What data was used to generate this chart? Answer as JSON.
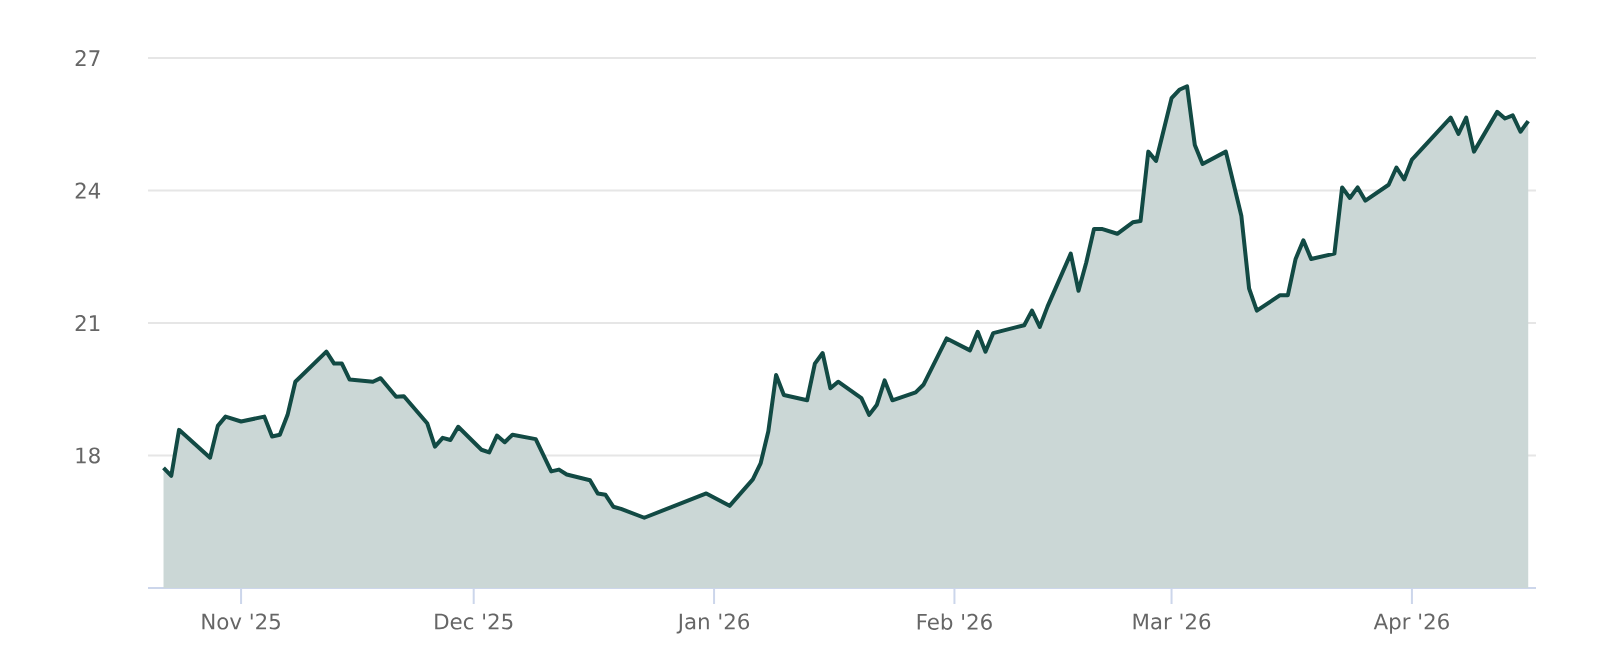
{
  "chart_data": {
    "type": "area",
    "x": [
      "2025-10-22",
      "2025-10-23",
      "2025-10-24",
      "2025-10-28",
      "2025-10-29",
      "2025-10-30",
      "2025-11-01",
      "2025-11-04",
      "2025-11-05",
      "2025-11-06",
      "2025-11-07",
      "2025-11-08",
      "2025-11-12",
      "2025-11-13",
      "2025-11-14",
      "2025-11-15",
      "2025-11-18",
      "2025-11-19",
      "2025-11-21",
      "2025-11-22",
      "2025-11-25",
      "2025-11-26",
      "2025-11-27",
      "2025-11-28",
      "2025-11-29",
      "2025-12-02",
      "2025-12-03",
      "2025-12-04",
      "2025-12-05",
      "2025-12-06",
      "2025-12-09",
      "2025-12-11",
      "2025-12-12",
      "2025-12-13",
      "2025-12-16",
      "2025-12-17",
      "2025-12-18",
      "2025-12-19",
      "2025-12-20",
      "2025-12-23",
      "2025-12-31",
      "2026-01-03",
      "2026-01-06",
      "2026-01-07",
      "2026-01-08",
      "2026-01-09",
      "2026-01-10",
      "2026-01-13",
      "2026-01-14",
      "2026-01-15",
      "2026-01-16",
      "2026-01-17",
      "2026-01-20",
      "2026-01-21",
      "2026-01-22",
      "2026-01-23",
      "2026-01-24",
      "2026-01-27",
      "2026-01-28",
      "2026-01-31",
      "2026-02-03",
      "2026-02-04",
      "2026-02-05",
      "2026-02-06",
      "2026-02-10",
      "2026-02-11",
      "2026-02-12",
      "2026-02-13",
      "2026-02-16",
      "2026-02-17",
      "2026-02-18",
      "2026-02-19",
      "2026-02-20",
      "2026-02-22",
      "2026-02-24",
      "2026-02-25",
      "2026-02-26",
      "2026-02-27",
      "2026-03-01",
      "2026-03-02",
      "2026-03-03",
      "2026-03-04",
      "2026-03-05",
      "2026-03-08",
      "2026-03-10",
      "2026-03-11",
      "2026-03-12",
      "2026-03-15",
      "2026-03-16",
      "2026-03-17",
      "2026-03-18",
      "2026-03-19",
      "2026-03-22",
      "2026-03-23",
      "2026-03-24",
      "2026-03-25",
      "2026-03-26",
      "2026-03-29",
      "2026-03-30",
      "2026-03-31",
      "2026-04-01",
      "2026-04-06",
      "2026-04-07",
      "2026-04-08",
      "2026-04-09",
      "2026-04-12",
      "2026-04-13",
      "2026-04-14",
      "2026-04-15",
      "2026-04-16"
    ],
    "series": [
      {
        "color": "#124a44",
        "values": [
          17.72,
          17.54,
          18.58,
          17.95,
          18.67,
          18.88,
          18.77,
          18.88,
          18.43,
          18.47,
          18.92,
          19.67,
          20.35,
          20.08,
          20.08,
          19.72,
          19.67,
          19.75,
          19.33,
          19.34,
          18.73,
          18.2,
          18.4,
          18.35,
          18.65,
          18.13,
          18.07,
          18.45,
          18.3,
          18.47,
          18.37,
          17.64,
          17.68,
          17.57,
          17.44,
          17.14,
          17.11,
          16.84,
          16.79,
          16.59,
          17.14,
          16.86,
          17.46,
          17.82,
          18.55,
          19.82,
          19.37,
          19.25,
          20.08,
          20.32,
          19.52,
          19.67,
          19.3,
          18.92,
          19.15,
          19.7,
          19.25,
          19.43,
          19.6,
          20.65,
          20.38,
          20.8,
          20.35,
          20.77,
          20.95,
          21.28,
          20.91,
          21.37,
          22.57,
          21.73,
          22.37,
          23.13,
          23.13,
          23.02,
          23.28,
          23.31,
          24.88,
          24.67,
          26.09,
          26.28,
          26.36,
          25.03,
          24.6,
          24.88,
          23.43,
          21.78,
          21.28,
          21.63,
          21.63,
          22.45,
          22.87,
          22.45,
          22.57,
          24.07,
          23.83,
          24.07,
          23.77,
          24.13,
          24.52,
          24.25,
          24.7,
          25.65,
          25.28,
          25.65,
          24.88,
          25.78,
          25.63,
          25.7,
          25.33,
          25.57
        ]
      }
    ],
    "xlim": [
      "2025-10-20",
      "2026-04-17"
    ],
    "xticks": [
      {
        "value": "2025-11-01",
        "label": "Nov '25"
      },
      {
        "value": "2025-12-01",
        "label": "Dec '25"
      },
      {
        "value": "2026-01-01",
        "label": "Jan '26"
      },
      {
        "value": "2026-02-01",
        "label": "Feb '26"
      },
      {
        "value": "2026-03-01",
        "label": "Mar '26"
      },
      {
        "value": "2026-04-01",
        "label": "Apr '26"
      }
    ],
    "ylim": [
      15,
      27
    ],
    "yticks": [
      18,
      21,
      24,
      27
    ],
    "grid": "y",
    "legend": false,
    "marker": "none",
    "line_style": "solid"
  }
}
